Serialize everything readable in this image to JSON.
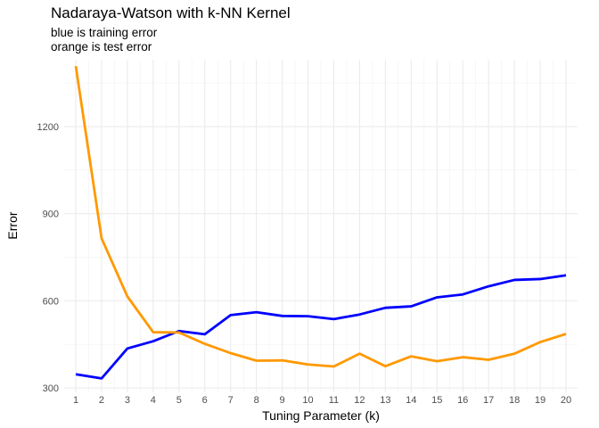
{
  "chart_data": {
    "type": "line",
    "title": "Nadaraya-Watson with k-NN Kernel",
    "subtitle": [
      "blue is training error",
      "orange is test error"
    ],
    "xlabel": "Tuning Parameter (k)",
    "ylabel": "Error",
    "x": [
      1,
      2,
      3,
      4,
      5,
      6,
      7,
      8,
      9,
      10,
      11,
      12,
      13,
      14,
      15,
      16,
      17,
      18,
      19,
      20
    ],
    "xlim": [
      0.55,
      20.45
    ],
    "ylim": [
      285,
      1430
    ],
    "yticks": [
      300,
      600,
      900,
      1200
    ],
    "grid": true,
    "legend": "none",
    "series": [
      {
        "color": "#0000ff",
        "values": [
          347,
          333,
          436,
          461,
          496,
          485,
          551,
          561,
          548,
          547,
          537,
          553,
          576,
          581,
          612,
          622,
          650,
          672,
          675,
          688
        ]
      },
      {
        "color": "#ff9900",
        "values": [
          1408,
          815,
          615,
          492,
          491,
          452,
          420,
          394,
          395,
          381,
          374,
          418,
          375,
          409,
          392,
          406,
          397,
          418,
          458,
          486
        ]
      }
    ]
  }
}
